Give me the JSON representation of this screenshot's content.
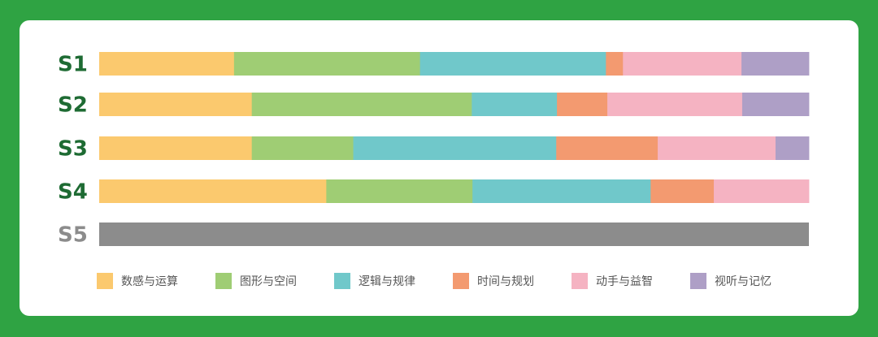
{
  "chart_data": {
    "type": "bar",
    "orientation": "horizontal",
    "stacked": true,
    "normalized": true,
    "categories": [
      "S1",
      "S2",
      "S3",
      "S4",
      "S5"
    ],
    "category_colors": [
      "#1e6b33",
      "#1e6b33",
      "#1e6b33",
      "#1e6b33",
      "#8c8c8c"
    ],
    "empty_fill_color": "#8c8c8c",
    "series": [
      {
        "name": "数感与运算",
        "color": "#fbc96e",
        "values": [
          19,
          21.5,
          21.5,
          32,
          0
        ]
      },
      {
        "name": "图形与空间",
        "color": "#9fcd74",
        "values": [
          26.2,
          31,
          14.3,
          20.6,
          0
        ]
      },
      {
        "name": "逻辑与规律",
        "color": "#70c8ca",
        "values": [
          26.2,
          12,
          28.6,
          25.1,
          0
        ]
      },
      {
        "name": "时间与规划",
        "color": "#f39a70",
        "values": [
          2.4,
          7.1,
          14.3,
          8.9,
          0
        ]
      },
      {
        "name": "动手与益智",
        "color": "#f5b3c2",
        "values": [
          16.7,
          19,
          16.6,
          13.4,
          0
        ]
      },
      {
        "name": "视听与记忆",
        "color": "#ae9fc6",
        "values": [
          9.5,
          9.4,
          4.7,
          0,
          0
        ]
      }
    ],
    "legend_position": "bottom",
    "grid": false
  }
}
